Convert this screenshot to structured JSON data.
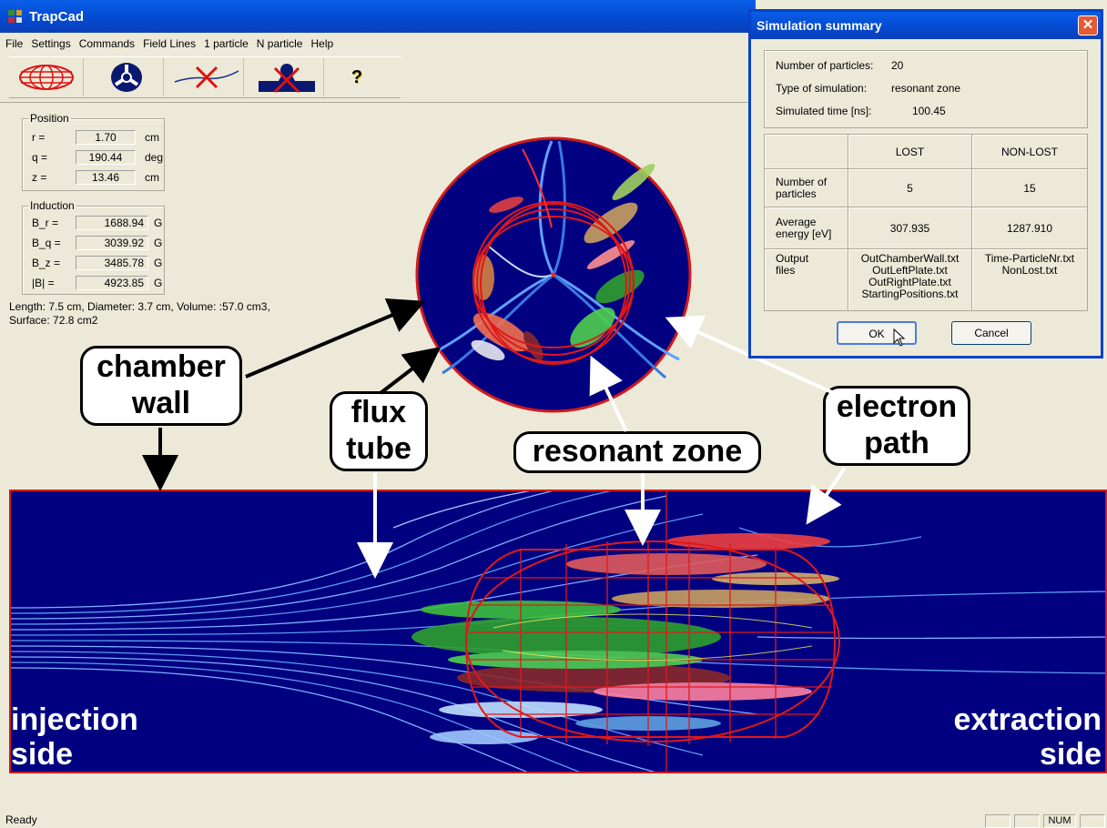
{
  "window": {
    "title": "TrapCad"
  },
  "menu": [
    "File",
    "Settings",
    "Commands",
    "Field Lines",
    "1 particle",
    "N particle",
    "Help"
  ],
  "toolbar": {
    "icons": [
      "chamber-mesh-icon",
      "magnet-end-view-icon",
      "field-line-cross-icon",
      "particle-lost-icon",
      "help-question-icon"
    ],
    "help_glyph": "?"
  },
  "position": {
    "legend": "Position",
    "fields": [
      {
        "label": "r =",
        "value": "1.70",
        "unit": "cm"
      },
      {
        "label": "q =",
        "value": "190.44",
        "unit": "deg"
      },
      {
        "label": "z =",
        "value": "13.46",
        "unit": "cm"
      }
    ]
  },
  "induction": {
    "legend": "Induction",
    "fields": [
      {
        "label": "B_r =",
        "value": "1688.94",
        "unit": "G"
      },
      {
        "label": "B_q =",
        "value": "3039.92",
        "unit": "G"
      },
      {
        "label": "B_z =",
        "value": "3485.78",
        "unit": "G"
      },
      {
        "label": "|B|  =",
        "value": "4923.85",
        "unit": "G"
      }
    ]
  },
  "geometry": {
    "line1": "Length: 7.5 cm, Diameter: 3.7 cm, Volume: :57.0 cm3,",
    "line2": "Surface: 72.8 cm2"
  },
  "annotations": {
    "chamber_wall": [
      "chamber",
      "wall"
    ],
    "flux_tube": [
      "flux",
      "tube"
    ],
    "resonant_zone": "resonant zone",
    "electron_path": [
      "electron",
      "path"
    ],
    "injection_side": [
      "injection",
      "side"
    ],
    "extraction_side": [
      "extraction",
      "side"
    ]
  },
  "dialog": {
    "title": "Simulation summary",
    "close_glyph": "✕",
    "info": [
      {
        "label": "Number of particles:",
        "value": "20"
      },
      {
        "label": "Type of simulation:",
        "value": "resonant zone"
      },
      {
        "label": "Simulated time [ns]:",
        "value": "100.45"
      }
    ],
    "columns": [
      "LOST",
      "NON-LOST"
    ],
    "rows": {
      "number": {
        "label": [
          "Number of",
          "particles"
        ],
        "lost": "5",
        "nonlost": "15"
      },
      "energy": {
        "label": [
          "Average",
          "energy [eV]"
        ],
        "lost": "307.935",
        "nonlost": "1287.910"
      },
      "files": {
        "label": [
          "Output",
          "files"
        ],
        "lost": [
          "OutChamberWall.txt",
          "OutLeftPlate.txt",
          "OutRightPlate.txt",
          "StartingPositions.txt"
        ],
        "nonlost": [
          "Time-ParticleNr.txt",
          "NonLost.txt"
        ]
      }
    },
    "ok_label": "OK",
    "cancel_label": "Cancel"
  },
  "status": {
    "text": "Ready",
    "num": "NUM"
  },
  "colors": {
    "plot_bg": "#010080",
    "chamber_red": "#d21a1a",
    "title_blue": "#0349cf"
  }
}
